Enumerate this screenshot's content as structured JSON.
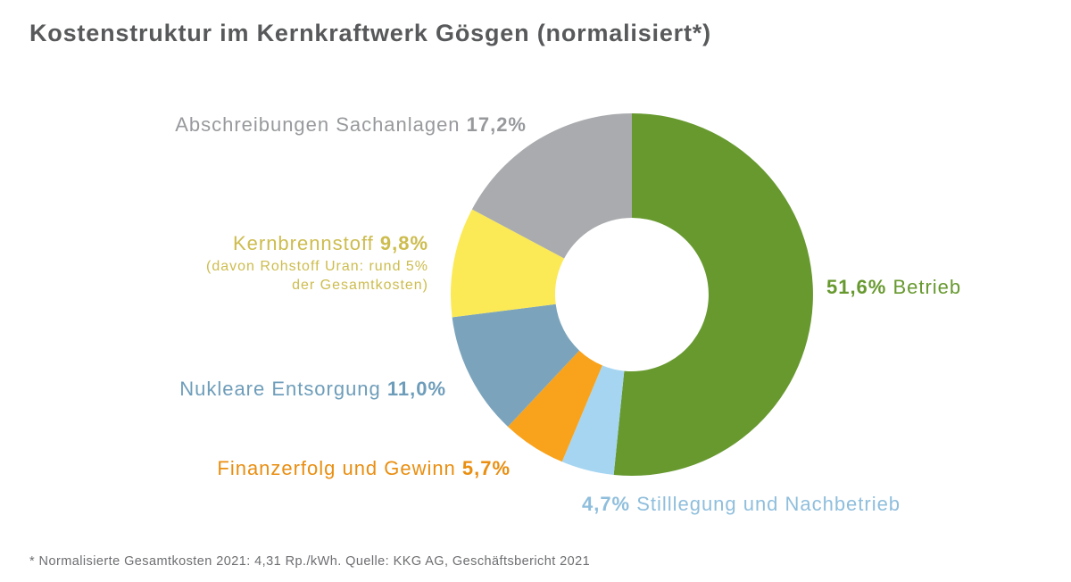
{
  "title": "Kostenstruktur im Kernkraftwerk Gösgen (normalisiert*)",
  "footnote": "* Normalisierte Gesamtkosten 2021: 4,31 Rp./kWh. Quelle: KKG AG, Geschäftsbericht 2021",
  "chart_data": {
    "type": "pie",
    "variant": "donut",
    "title": "Kostenstruktur im Kernkraftwerk Gösgen (normalisiert*)",
    "unit": "percent",
    "start_angle_deg": 0,
    "direction": "clockwise",
    "legend_position": "labels-around-chart",
    "slices": [
      {
        "label": "Betrieb",
        "value": 51.6,
        "display": "51,6%",
        "color": "#67992F"
      },
      {
        "label": "Stilllegung und Nachbetrieb",
        "value": 4.7,
        "display": "4,7%",
        "color": "#A6D5F2"
      },
      {
        "label": "Finanzerfolg und Gewinn",
        "value": 5.7,
        "display": "5,7%",
        "color": "#F9A21B"
      },
      {
        "label": "Nukleare Entsorgung",
        "value": 11.0,
        "display": "11,0%",
        "color": "#7BA4BC"
      },
      {
        "label": "Kernbrennstoff",
        "value": 9.8,
        "display": "9,8%",
        "color": "#FBE955",
        "note": "(davon Rohstoff Uran: rund 5% der Gesamtkosten)"
      },
      {
        "label": "Abschreibungen Sachanlagen",
        "value": 17.2,
        "display": "17,2%",
        "color": "#A9ABAE"
      }
    ]
  },
  "callouts": {
    "abschreibungen": {
      "text": "Abschreibungen Sachanlagen",
      "pct": "17,2%",
      "color": "#97999C"
    },
    "kernbrennstoff": {
      "text": "Kernbrennstoff",
      "pct": "9,8%",
      "note_line1": "(davon Rohstoff Uran: rund 5%",
      "note_line2": "der Gesamtkosten)",
      "color": "#CDBC4E"
    },
    "entsorgung": {
      "text": "Nukleare Entsorgung",
      "pct": "11,0%",
      "color": "#6E9DBA"
    },
    "finanzerfolg": {
      "text": "Finanzerfolg und Gewinn",
      "pct": "5,7%",
      "color": "#E98E10"
    },
    "stilllegung": {
      "pct": "4,7%",
      "text": "Stilllegung und Nachbetrieb",
      "color": "#8FBEDC"
    },
    "betrieb": {
      "pct": "51,6%",
      "text": "Betrieb",
      "color": "#67992F"
    }
  }
}
